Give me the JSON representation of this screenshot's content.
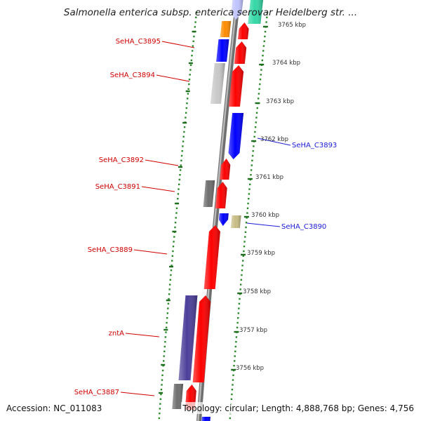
{
  "title": "Salmonella enterica subsp. enterica serovar Heidelberg str. ...",
  "footer": {
    "accession": "Accession: NC_011083",
    "summary": "Topology: circular; Length: 4,888,768 bp; Genes: 4,756"
  },
  "colors": {
    "forward_label": "#d00000",
    "reverse_label": "#1a1ad8",
    "backbone": "#8a8a8a",
    "tick_dots": "#2a8a2a"
  },
  "kbp_ticks": [
    "3765 kbp",
    "3764 kbp",
    "3763 kbp",
    "3762 kbp",
    "3761 kbp",
    "3760 kbp",
    "3759 kbp",
    "3758 kbp",
    "3757 kbp",
    "3756 kbp"
  ],
  "gene_labels": [
    {
      "text": "SeHA_C3895",
      "strand": "forward"
    },
    {
      "text": "SeHA_C3894",
      "strand": "forward"
    },
    {
      "text": "SeHA_C3893",
      "strand": "reverse"
    },
    {
      "text": "SeHA_C3892",
      "strand": "forward"
    },
    {
      "text": "SeHA_C3891",
      "strand": "forward"
    },
    {
      "text": "SeHA_C3890",
      "strand": "reverse"
    },
    {
      "text": "SeHA_C3889",
      "strand": "forward"
    },
    {
      "text": "zntA",
      "strand": "forward"
    },
    {
      "text": "SeHA_C3887",
      "strand": "forward"
    }
  ],
  "features": [
    {
      "name": "forward-cds-1",
      "color": "#ff0000",
      "kind": "cds"
    },
    {
      "name": "forward-orf-1",
      "color": "#ff8c00",
      "kind": "orf"
    },
    {
      "name": "forward-cds-2",
      "color": "#ff0000",
      "kind": "cds"
    },
    {
      "name": "forward-blast-1",
      "color": "#0000ff",
      "kind": "blast"
    },
    {
      "name": "forward-cds-3",
      "color": "#ff0000",
      "kind": "cds"
    },
    {
      "name": "forward-gray-1",
      "color": "#c8c8c8",
      "kind": "other"
    },
    {
      "name": "reverse-blast-1",
      "color": "#0000ff",
      "kind": "blast"
    },
    {
      "name": "forward-cds-4",
      "color": "#ff0000",
      "kind": "cds"
    },
    {
      "name": "forward-cds-5",
      "color": "#ff0000",
      "kind": "cds"
    },
    {
      "name": "forward-gray-2",
      "color": "#6e6e6e",
      "kind": "other"
    },
    {
      "name": "reverse-blast-2",
      "color": "#0000ff",
      "kind": "blast"
    },
    {
      "name": "reverse-khaki-1",
      "color": "#c8bd84",
      "kind": "other"
    },
    {
      "name": "forward-cds-6",
      "color": "#ff0000",
      "kind": "cds"
    },
    {
      "name": "forward-cds-7",
      "color": "#ff0000",
      "kind": "cds"
    },
    {
      "name": "forward-navy-1",
      "color": "#4b3f99",
      "kind": "other"
    },
    {
      "name": "forward-cds-8",
      "color": "#ff0000",
      "kind": "cds"
    },
    {
      "name": "forward-gray-3",
      "color": "#6e6e6e",
      "kind": "other"
    },
    {
      "name": "top-lavender-1",
      "color": "#c0c4ff",
      "kind": "other"
    },
    {
      "name": "top-aqua-1",
      "color": "#33d8a6",
      "kind": "other"
    },
    {
      "name": "bottom-blast-1",
      "color": "#0000ff",
      "kind": "blast"
    }
  ]
}
